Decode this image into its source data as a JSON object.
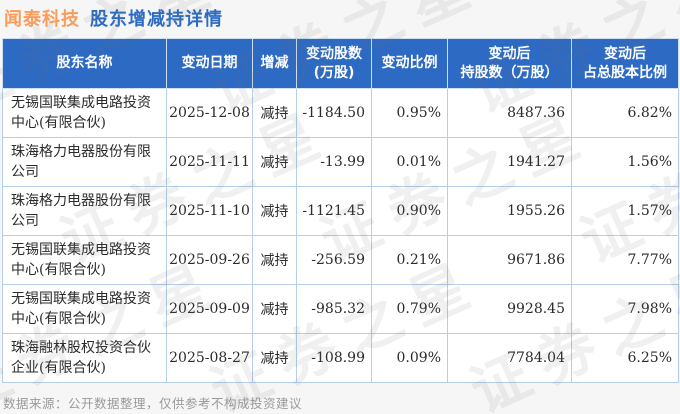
{
  "header": {
    "stock": "闻泰科技",
    "title": "股东增减持详情"
  },
  "footer": {
    "note": "数据来源：公开数据整理，仅供参考不构成投资建议"
  },
  "watermark": {
    "text": "证券之星"
  },
  "colors": {
    "header_bg": "#2d6ac4",
    "title_orange": "#fa9c5c",
    "title_blue": "#2e6cc4",
    "decrease_green": "#1a9e53",
    "cell_border": "#b3cfe9",
    "body_text": "#2b2b2b",
    "footer_gray": "#9a9a9a"
  },
  "chart_data": {
    "type": "table",
    "title": "闻泰科技 股东增减持详情",
    "columns": [
      "股东名称",
      "变动日期",
      "增减",
      "变动股数\n(万股)",
      "变动比例",
      "变动后\n持股数（万股）",
      "变动后\n占总股本比例"
    ],
    "rows": [
      [
        "无锡国联集成电路投资中心(有限合伙)",
        "2025-12-08",
        "减持",
        "-1184.50",
        "0.95%",
        "8487.36",
        "6.82%"
      ],
      [
        "珠海格力电器股份有限公司",
        "2025-11-11",
        "减持",
        "-13.99",
        "0.01%",
        "1941.27",
        "1.56%"
      ],
      [
        "珠海格力电器股份有限公司",
        "2025-11-10",
        "减持",
        "-1121.45",
        "0.90%",
        "1955.26",
        "1.57%"
      ],
      [
        "无锡国联集成电路投资中心(有限合伙)",
        "2025-09-26",
        "减持",
        "-256.59",
        "0.21%",
        "9671.86",
        "7.77%"
      ],
      [
        "无锡国联集成电路投资中心(有限合伙)",
        "2025-09-09",
        "减持",
        "-985.32",
        "0.79%",
        "9928.45",
        "7.98%"
      ],
      [
        "珠海融林股权投资合伙企业(有限合伙)",
        "2025-08-27",
        "减持",
        "-108.99",
        "0.09%",
        "7784.04",
        "6.25%"
      ]
    ]
  }
}
